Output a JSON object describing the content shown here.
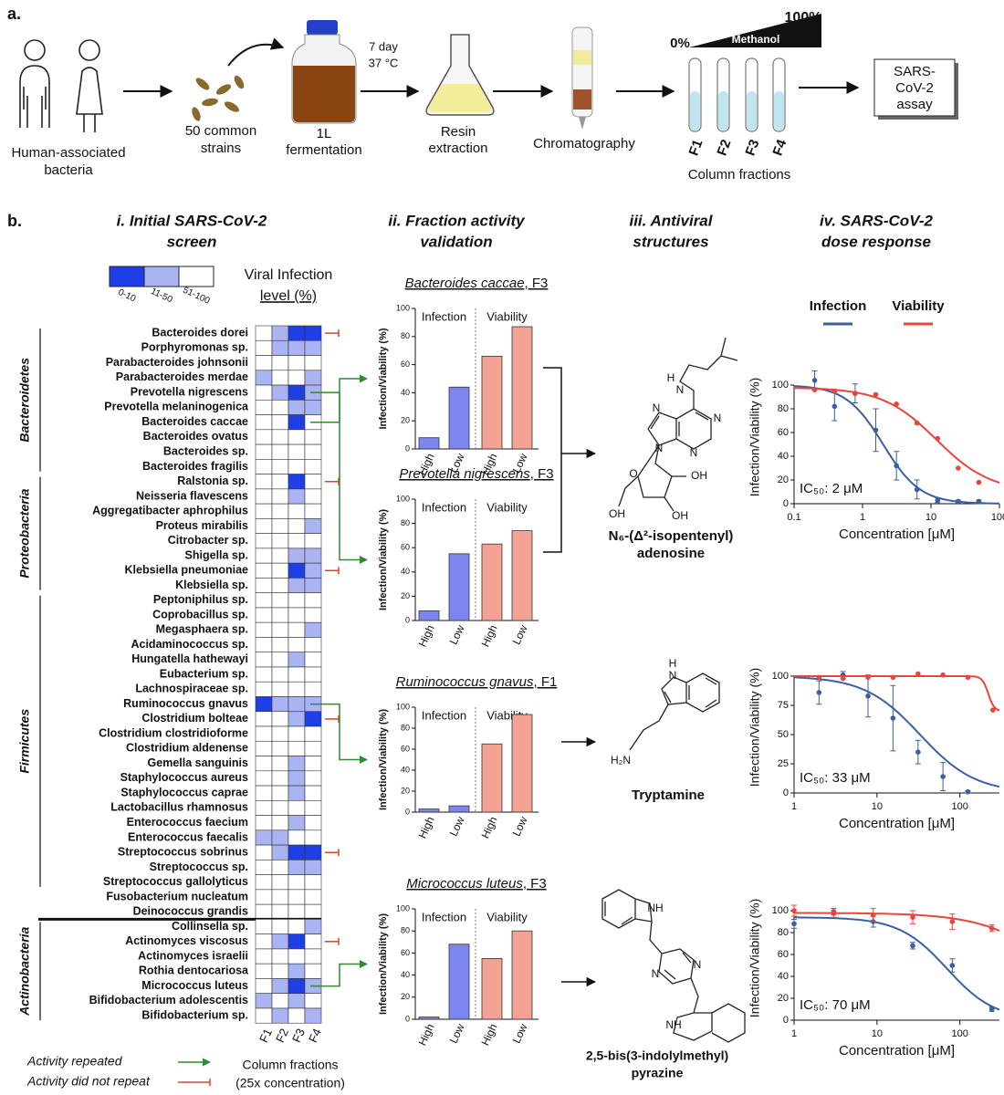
{
  "panel_a": {
    "label": "a.",
    "source": [
      "Human-associated",
      "bacteria"
    ],
    "strains": [
      "50 common",
      "strains"
    ],
    "fermentation": [
      "1L",
      "fermentation"
    ],
    "incubation": [
      "7 day",
      "37 °C"
    ],
    "extraction": [
      "Resin",
      "extraction"
    ],
    "chromatography": "Chromatography",
    "gradient": {
      "start": "0%",
      "end": "100%",
      "solvent": "Methanol"
    },
    "fractions": [
      "F1",
      "F2",
      "F3",
      "F4"
    ],
    "fractions_label": "Column fractions",
    "assay": [
      "SARS-",
      "CoV-2",
      "assay"
    ]
  },
  "panel_b": {
    "label": "b.",
    "headings": [
      [
        "i. Initial SARS-CoV-2",
        "screen"
      ],
      [
        "ii. Fraction activity",
        "validation"
      ],
      [
        "iii. Antiviral",
        "structures"
      ],
      [
        "iv. SARS-CoV-2",
        "dose response"
      ]
    ]
  },
  "heatmap": {
    "legend_title": [
      "Viral Infection",
      "level (%)"
    ],
    "levels": [
      {
        "label": "0-10",
        "color": "#1f3fe6"
      },
      {
        "label": "11-50",
        "color": "#aab4f3"
      },
      {
        "label": "51-100",
        "color": "#ffffff"
      }
    ],
    "columns": [
      "F1",
      "F2",
      "F3",
      "F4"
    ],
    "columns_label": [
      "Column fractions",
      "(25x concentration)"
    ],
    "key": {
      "repeated": {
        "label": "Activity repeated",
        "color": "#2e8b2e"
      },
      "not_repeated": {
        "label": "Activity did not repeat",
        "color": "#e0402a"
      }
    },
    "phyla": [
      {
        "name": "Bacteroidetes",
        "strains": [
          {
            "name": "Bacteroides dorei",
            "levels": [
              2,
              1,
              0,
              0
            ],
            "follow_up": "not_repeated"
          },
          {
            "name": "Porphyromonas sp.",
            "levels": [
              2,
              1,
              1,
              1
            ]
          },
          {
            "name": "Parabacteroides johnsonii",
            "levels": [
              2,
              2,
              2,
              2
            ]
          },
          {
            "name": "Parabacteroides merdae",
            "levels": [
              1,
              2,
              2,
              1
            ]
          },
          {
            "name": "Prevotella nigrescens",
            "levels": [
              2,
              1,
              0,
              1
            ],
            "follow_up": "repeated"
          },
          {
            "name": "Prevotella melaninogenica",
            "levels": [
              2,
              2,
              1,
              1
            ]
          },
          {
            "name": "Bacteroides caccae",
            "levels": [
              2,
              2,
              0,
              2
            ],
            "follow_up": "repeated"
          },
          {
            "name": "Bacteroides ovatus",
            "levels": [
              2,
              2,
              2,
              2
            ]
          },
          {
            "name": "Bacteroides sp.",
            "levels": [
              2,
              2,
              2,
              2
            ]
          },
          {
            "name": "Bacteroides fragilis",
            "levels": [
              2,
              2,
              2,
              2
            ]
          }
        ]
      },
      {
        "name": "Proteobacteria",
        "strains": [
          {
            "name": "Ralstonia sp.",
            "levels": [
              2,
              2,
              0,
              2
            ],
            "follow_up": "not_repeated"
          },
          {
            "name": "Neisseria flavescens",
            "levels": [
              2,
              2,
              1,
              2
            ]
          },
          {
            "name": "Aggregatibacter aphrophilus",
            "levels": [
              2,
              2,
              2,
              2
            ]
          },
          {
            "name": "Proteus mirabilis",
            "levels": [
              2,
              2,
              2,
              1
            ]
          },
          {
            "name": "Citrobacter sp.",
            "levels": [
              2,
              2,
              2,
              2
            ]
          },
          {
            "name": "Shigella sp.",
            "levels": [
              2,
              2,
              1,
              1
            ]
          },
          {
            "name": "Klebsiella pneumoniae",
            "levels": [
              2,
              2,
              0,
              1
            ],
            "follow_up": "not_repeated"
          },
          {
            "name": "Klebsiella sp.",
            "levels": [
              2,
              2,
              1,
              1
            ]
          }
        ]
      },
      {
        "name": "Firmicutes",
        "strains": [
          {
            "name": "Peptoniphilus sp.",
            "levels": [
              2,
              2,
              2,
              2
            ]
          },
          {
            "name": "Coprobacillus sp.",
            "levels": [
              2,
              2,
              2,
              2
            ]
          },
          {
            "name": "Megasphaera sp.",
            "levels": [
              2,
              2,
              2,
              1
            ]
          },
          {
            "name": "Acidaminococcus sp.",
            "levels": [
              2,
              2,
              2,
              2
            ]
          },
          {
            "name": "Hungatella hathewayi",
            "levels": [
              2,
              2,
              1,
              2
            ]
          },
          {
            "name": "Eubacterium sp.",
            "levels": [
              2,
              2,
              2,
              2
            ]
          },
          {
            "name": "Lachnospiraceae sp.",
            "levels": [
              2,
              2,
              2,
              2
            ]
          },
          {
            "name": "Ruminococcus gnavus",
            "levels": [
              0,
              1,
              1,
              1
            ],
            "follow_up": "repeated"
          },
          {
            "name": "Clostridium bolteae",
            "levels": [
              2,
              2,
              1,
              0
            ],
            "follow_up": "not_repeated"
          },
          {
            "name": "Clostridium clostridioforme",
            "levels": [
              2,
              2,
              2,
              2
            ]
          },
          {
            "name": "Clostridium aldenense",
            "levels": [
              2,
              2,
              2,
              2
            ]
          },
          {
            "name": "Gemella sanguinis",
            "levels": [
              2,
              2,
              1,
              2
            ]
          },
          {
            "name": "Staphylococcus aureus",
            "levels": [
              2,
              2,
              1,
              2
            ]
          },
          {
            "name": "Staphylococcus caprae",
            "levels": [
              2,
              2,
              1,
              2
            ]
          },
          {
            "name": "Lactobacillus rhamnosus",
            "levels": [
              2,
              2,
              2,
              2
            ]
          },
          {
            "name": "Enterococcus faecium",
            "levels": [
              2,
              2,
              1,
              2
            ]
          },
          {
            "name": "Enterococcus faecalis",
            "levels": [
              1,
              1,
              2,
              2
            ]
          },
          {
            "name": "Streptococcus sobrinus",
            "levels": [
              2,
              1,
              0,
              0
            ],
            "follow_up": "not_repeated"
          },
          {
            "name": "Streptococcus sp.",
            "levels": [
              2,
              2,
              1,
              1
            ]
          },
          {
            "name": "Streptococcus gallolyticus",
            "levels": [
              2,
              2,
              2,
              2
            ]
          }
        ]
      },
      {
        "strains": [
          {
            "name": "Fusobacterium nucleatum",
            "levels": [
              2,
              2,
              2,
              2
            ]
          },
          {
            "name": "Deinococcus grandis",
            "levels": [
              2,
              2,
              2,
              2
            ]
          }
        ]
      },
      {
        "name": "Actinobacteria",
        "strains": [
          {
            "name": "Collinsella sp.",
            "levels": [
              2,
              2,
              2,
              1
            ]
          },
          {
            "name": "Actinomyces viscosus",
            "levels": [
              2,
              1,
              0,
              2
            ],
            "follow_up": "not_repeated"
          },
          {
            "name": "Actinomyces israelii",
            "levels": [
              2,
              2,
              2,
              2
            ]
          },
          {
            "name": "Rothia dentocariosa",
            "levels": [
              2,
              2,
              1,
              2
            ]
          },
          {
            "name": "Micrococcus luteus",
            "levels": [
              2,
              1,
              0,
              1
            ],
            "follow_up": "repeated"
          },
          {
            "name": "Bifidobacterium adolescentis",
            "levels": [
              1,
              2,
              1,
              2
            ]
          },
          {
            "name": "Bifidobacterium sp.",
            "levels": [
              2,
              1,
              2,
              1
            ]
          }
        ]
      }
    ]
  },
  "chart_data": [
    {
      "type": "bar",
      "title": [
        "Bacteroides caccae",
        ", F3"
      ],
      "ylabel": "Infection/Viability (%)",
      "ylim": [
        0,
        100
      ],
      "yticks": [
        0,
        20,
        40,
        60,
        80,
        100
      ],
      "groups": [
        {
          "name": "Infection",
          "color": "#7d85ef",
          "categories": [
            "High",
            "Low"
          ],
          "values": [
            8,
            44
          ]
        },
        {
          "name": "Viability",
          "color": "#f4a294",
          "categories": [
            "High",
            "Low"
          ],
          "values": [
            66,
            87
          ]
        }
      ]
    },
    {
      "type": "bar",
      "title": [
        "Prevotella nigrescens",
        ", F3"
      ],
      "ylabel": "Infection/Viability (%)",
      "ylim": [
        0,
        100
      ],
      "yticks": [
        0,
        20,
        40,
        60,
        80,
        100
      ],
      "groups": [
        {
          "name": "Infection",
          "color": "#7d85ef",
          "categories": [
            "High",
            "Low"
          ],
          "values": [
            8,
            55
          ]
        },
        {
          "name": "Viability",
          "color": "#f4a294",
          "categories": [
            "High",
            "Low"
          ],
          "values": [
            63,
            74
          ]
        }
      ]
    },
    {
      "type": "bar",
      "title": [
        "Ruminococcus gnavus",
        ", F1"
      ],
      "ylabel": "Infection/Viability (%)",
      "ylim": [
        0,
        100
      ],
      "yticks": [
        0,
        20,
        40,
        60,
        80,
        100
      ],
      "groups": [
        {
          "name": "Infection",
          "color": "#7d85ef",
          "categories": [
            "High",
            "Low"
          ],
          "values": [
            3,
            6
          ]
        },
        {
          "name": "Viability",
          "color": "#f4a294",
          "categories": [
            "High",
            "Low"
          ],
          "values": [
            65,
            93
          ]
        }
      ]
    },
    {
      "type": "bar",
      "title": [
        "Micrococcus luteus",
        ", F3"
      ],
      "ylabel": "Infection/Viability (%)",
      "ylim": [
        0,
        100
      ],
      "yticks": [
        0,
        20,
        40,
        60,
        80,
        100
      ],
      "groups": [
        {
          "name": "Infection",
          "color": "#7d85ef",
          "categories": [
            "High",
            "Low"
          ],
          "values": [
            2,
            68
          ]
        },
        {
          "name": "Viability",
          "color": "#f4a294",
          "categories": [
            "High",
            "Low"
          ],
          "values": [
            55,
            80
          ]
        }
      ]
    },
    {
      "type": "scatter",
      "xlabel": "Concentration [μM]",
      "ylabel": "Infection/Viability (%)",
      "annotation": "IC₅₀: 2 μM",
      "legend": "top",
      "xlog": true,
      "xlim": [
        0.1,
        100
      ],
      "xticks": [
        0.1,
        1,
        10,
        100
      ],
      "ylim": [
        0,
        100
      ],
      "yticks": [
        0,
        20,
        40,
        60,
        80,
        100
      ],
      "series": [
        {
          "name": "Infection",
          "color": "#3b5fa0",
          "x": [
            0.2,
            0.39,
            0.78,
            1.56,
            3.13,
            6.25,
            12.5,
            25,
            50
          ],
          "values": [
            104,
            82,
            93,
            62,
            32,
            12,
            3,
            2,
            2
          ],
          "errors": [
            8,
            12,
            8,
            18,
            12,
            8,
            2,
            1,
            1
          ],
          "fit": {
            "top": 100,
            "bottom": 0,
            "ic50": 2,
            "hill": 1.6
          }
        },
        {
          "name": "Viability",
          "color": "#e8453c",
          "x": [
            0.2,
            0.39,
            0.78,
            1.56,
            3.13,
            6.25,
            12.5,
            25,
            50
          ],
          "values": [
            96,
            95,
            93,
            92,
            84,
            68,
            55,
            30,
            18
          ],
          "fit": {
            "top": 98,
            "bottom": 10,
            "ic50": 12,
            "hill": 1.1
          }
        }
      ]
    },
    {
      "type": "scatter",
      "xlabel": "Concentration [μM]",
      "ylabel": "Infection/Viability (%)",
      "annotation": "IC₅₀: 33 μM",
      "xlog": true,
      "xlim": [
        1,
        300
      ],
      "xticks": [
        1,
        10,
        100
      ],
      "ylim": [
        0,
        100
      ],
      "yticks": [
        0,
        25,
        50,
        75,
        100
      ],
      "series": [
        {
          "color": "#3b5fa0",
          "x": [
            2,
            3.9,
            7.8,
            15.6,
            31.3,
            62.5,
            125
          ],
          "values": [
            86,
            101,
            83,
            64,
            35,
            14,
            1
          ],
          "errors": [
            10,
            3,
            18,
            28,
            10,
            12,
            1
          ],
          "fit": {
            "top": 100,
            "bottom": 0,
            "ic50": 33,
            "hill": 1.3
          }
        },
        {
          "color": "#e8453c",
          "x": [
            2,
            3.9,
            7.8,
            15.6,
            31.3,
            62.5,
            125,
            250
          ],
          "values": [
            99,
            98,
            99,
            99,
            102,
            101,
            99,
            71
          ],
          "fit": {
            "top": 100,
            "bottom": 70,
            "ic50": 220,
            "hill": 12
          }
        }
      ]
    },
    {
      "type": "scatter",
      "xlabel": "Concentration [μM]",
      "ylabel": "Infection/Viability (%)",
      "annotation": "IC₅₀: 70 μM",
      "xlog": true,
      "xlim": [
        1,
        300
      ],
      "xticks": [
        1,
        10,
        100
      ],
      "ylim": [
        0,
        100
      ],
      "yticks": [
        0,
        20,
        40,
        60,
        80,
        100
      ],
      "series": [
        {
          "color": "#3b5fa0",
          "x": [
            1,
            3,
            9,
            27,
            81,
            243
          ],
          "values": [
            88,
            99,
            90,
            68,
            50,
            10
          ],
          "errors": [
            4,
            3,
            5,
            3,
            6,
            2
          ],
          "fit": {
            "top": 94,
            "bottom": 0,
            "ic50": 70,
            "hill": 1.5
          }
        },
        {
          "color": "#e8453c",
          "x": [
            1,
            3,
            9,
            27,
            81,
            243
          ],
          "values": [
            100,
            98,
            96,
            94,
            90,
            84
          ],
          "errors": [
            5,
            4,
            6,
            6,
            7,
            3
          ],
          "fit": {
            "top": 98,
            "bottom": 0,
            "ic50": 1500,
            "hill": 1
          }
        }
      ]
    }
  ],
  "structures": [
    {
      "name": [
        "N₆-(Δ²-isopentenyl)",
        "adenosine"
      ],
      "atoms": [
        "H",
        "N",
        "N",
        "N",
        "N",
        "N",
        "O",
        "OH",
        "OH",
        "OH"
      ]
    },
    {
      "name": [
        "Tryptamine"
      ],
      "atoms": [
        "H",
        "N",
        "H₂N"
      ]
    },
    {
      "name": [
        "2,5-bis(3-indolylmethyl)",
        "pyrazine"
      ],
      "atoms": [
        "NH",
        "N",
        "N",
        "NH"
      ]
    }
  ]
}
